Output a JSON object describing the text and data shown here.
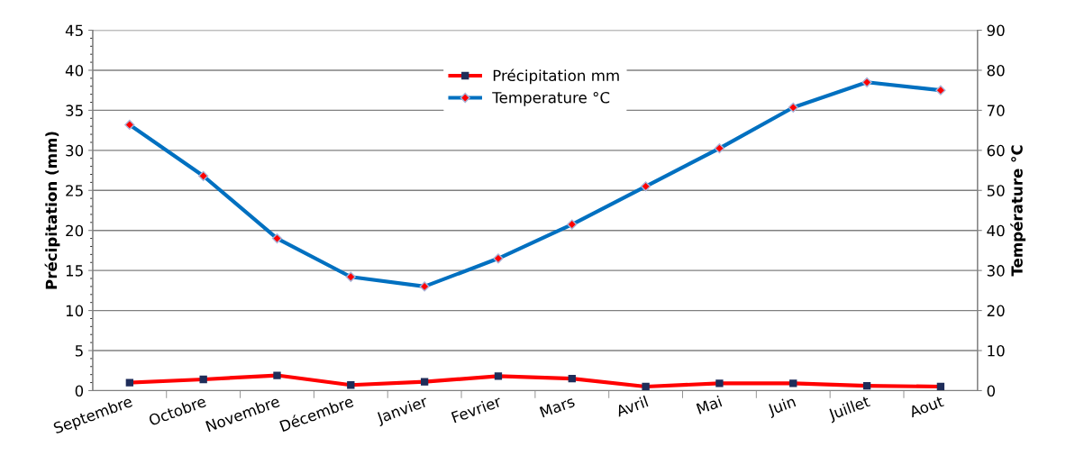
{
  "chart_data": {
    "type": "line",
    "categories": [
      "Septembre",
      "Octobre",
      "Novembre",
      "Décembre",
      "Janvier",
      "Fevrier",
      "Mars",
      "Avril",
      "Mai",
      "Juin",
      "Juillet",
      "Aout"
    ],
    "series": [
      {
        "name": "Précipitation mm",
        "color": "#ff0000",
        "marker": "square",
        "values": [
          1.0,
          1.4,
          1.9,
          0.7,
          1.1,
          1.8,
          1.5,
          0.5,
          0.9,
          0.9,
          0.6,
          0.5
        ]
      },
      {
        "name": "Temperature °C",
        "color": "#0070c0",
        "marker": "diamond",
        "axis": "y2",
        "values": [
          66.4,
          53.6,
          38,
          28.4,
          26,
          33,
          41.5,
          51,
          60.5,
          70.7,
          77,
          75
        ]
      }
    ],
    "ylabel": "Précipitation (mm)",
    "y2label": "Température °C",
    "ylim": [
      0,
      45
    ],
    "yticks": [
      0,
      5,
      10,
      15,
      20,
      25,
      30,
      35,
      40,
      45
    ],
    "y2lim": [
      0,
      90
    ],
    "y2ticks": [
      0,
      10,
      20,
      30,
      40,
      50,
      60,
      70,
      80,
      90
    ],
    "grid": "y",
    "legend": "top",
    "line_style": "solid"
  }
}
